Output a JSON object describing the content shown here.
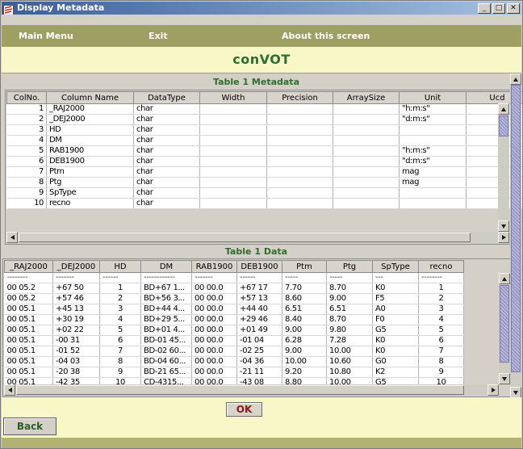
{
  "window": {
    "title": "Display Metadata",
    "icons": {
      "minimize": "_",
      "maximize": "□",
      "close": "✕"
    }
  },
  "menu": {
    "items": [
      {
        "label": "Main Menu"
      },
      {
        "label": "Exit"
      },
      {
        "label": "About this screen"
      }
    ]
  },
  "app_title": "conVOT",
  "metadata_table": {
    "title": "Table 1 Metadata",
    "columns": [
      "ColNo.",
      "Column Name",
      "DataType",
      "Width",
      "Precision",
      "ArraySize",
      "Unit",
      "Ucd"
    ],
    "rows": [
      [
        "1",
        "_RAJ2000",
        "char",
        "",
        "",
        "",
        "\"h:m:s\"",
        ""
      ],
      [
        "2",
        "_DEJ2000",
        "char",
        "",
        "",
        "",
        "\"d:m:s\"",
        ""
      ],
      [
        "3",
        "HD",
        "char",
        "",
        "",
        "",
        "",
        ""
      ],
      [
        "4",
        "DM",
        "char",
        "",
        "",
        "",
        "",
        ""
      ],
      [
        "5",
        "RAB1900",
        "char",
        "",
        "",
        "",
        "\"h:m:s\"",
        ""
      ],
      [
        "6",
        "DEB1900",
        "char",
        "",
        "",
        "",
        "\"d:m:s\"",
        ""
      ],
      [
        "7",
        "Ptm",
        "char",
        "",
        "",
        "",
        "mag",
        ""
      ],
      [
        "8",
        "Ptg",
        "char",
        "",
        "",
        "",
        "mag",
        ""
      ],
      [
        "9",
        "SpType",
        "char",
        "",
        "",
        "",
        "",
        ""
      ],
      [
        "10",
        "recno",
        "char",
        "",
        "",
        "",
        "",
        ""
      ]
    ]
  },
  "data_table": {
    "title": "Table 1 Data",
    "columns": [
      "_RAJ2000",
      "_DEJ2000",
      "HD",
      "DM",
      "RAB1900",
      "DEB1900",
      "Ptm",
      "Ptg",
      "SpType",
      "recno"
    ],
    "separator_row": [
      "--------",
      "-------",
      "------",
      "------------",
      "-------",
      "------",
      "-----",
      "-----",
      "---",
      "--------"
    ],
    "rows": [
      [
        "00 05.2",
        "+67 50",
        "1",
        "BD+67 1...",
        "00 00.0",
        "+67 17",
        "7.70",
        "8.70",
        "K0",
        "1"
      ],
      [
        "00 05.2",
        "+57 46",
        "2",
        "BD+56 3...",
        "00 00.0",
        "+57 13",
        "8.60",
        "9.00",
        "F5",
        "2"
      ],
      [
        "00 05.1",
        "+45 13",
        "3",
        "BD+44 4...",
        "00 00.0",
        "+44 40",
        "6.51",
        "6.51",
        "A0",
        "3"
      ],
      [
        "00 05.1",
        "+30 19",
        "4",
        "BD+29 5...",
        "00 00.0",
        "+29 46",
        "8.40",
        "8.70",
        "F0",
        "4"
      ],
      [
        "00 05.1",
        "+02 22",
        "5",
        "BD+01 4...",
        "00 00.0",
        "+01 49",
        "9.00",
        "9.80",
        "G5",
        "5"
      ],
      [
        "00 05.1",
        "-00 31",
        "6",
        "BD-01 45...",
        "00 00.0",
        "-01 04",
        "6.28",
        "7.28",
        "K0",
        "6"
      ],
      [
        "00 05.1",
        "-01 52",
        "7",
        "BD-02 60...",
        "00 00.0",
        "-02 25",
        "9.00",
        "10.00",
        "K0",
        "7"
      ],
      [
        "00 05.1",
        "-04 03",
        "8",
        "BD-04 60...",
        "00 00.0",
        "-04 36",
        "10.00",
        "10.60",
        "G0",
        "8"
      ],
      [
        "00 05.1",
        "-20 38",
        "9",
        "BD-21 65...",
        "00 00.0",
        "-21 11",
        "9.20",
        "10.80",
        "K2",
        "9"
      ],
      [
        "00 05.1",
        "-42 35",
        "10",
        "CD-4315...",
        "00 00.0",
        "-43 08",
        "8.80",
        "10.00",
        "G5",
        "10"
      ]
    ]
  },
  "buttons": {
    "ok": "OK",
    "back": "Back"
  },
  "colors": {
    "titlebar-left": "#3a5e9c",
    "titlebar-right": "#a6c0e0",
    "menu-bg": "#9e9f63",
    "band-yellow": "#f7f7c8",
    "title-green": "#2e6e2e",
    "ok-red": "#8e1616",
    "back-green": "#2d5f2d",
    "scroll-lavender": "#9a99c9",
    "bottom-strip": "#b2b272"
  }
}
